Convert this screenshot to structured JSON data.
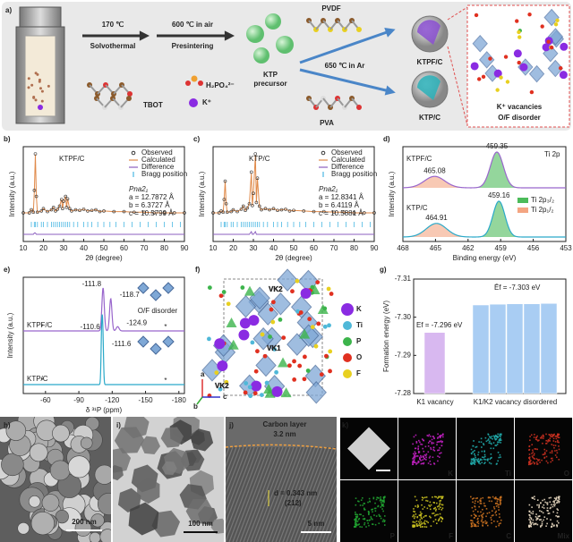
{
  "panel_a": {
    "label": "a)",
    "temp1": "170 ℃",
    "step1": "Solvothermal",
    "temp2": "600 ℃ in air",
    "step2": "Presintering",
    "precursor_lines": [
      "KTP",
      "precursor"
    ],
    "pvdf": "PVDF",
    "temp3": "650 ℃ in Ar",
    "pva": "PVA",
    "tbot": "TBOT",
    "phosphate": "H₂PO₄²⁻",
    "potassium": "K⁺",
    "product1": "KTPF/C",
    "product2": "KTP/C",
    "note1": "K⁺ vacancies",
    "note2": "O/F disorder"
  },
  "chart_data": [
    {
      "panel": "b)",
      "type": "rietveld",
      "sample": "KTPF/C",
      "xlabel": "2θ (degree)",
      "ylabel": "Intensity (a.u.)",
      "xlim": [
        10,
        90
      ],
      "xticks": [
        10,
        20,
        30,
        40,
        50,
        60,
        70,
        80,
        90
      ],
      "series": [
        {
          "name": "Observed",
          "color": "#333333"
        },
        {
          "name": "Calculated",
          "color": "#e08a4a"
        },
        {
          "name": "Difference",
          "color": "#8b5fbf"
        },
        {
          "name": "Bragg position",
          "color": "#6ec6e8"
        }
      ],
      "params": [
        "Pna2₁",
        "a = 12.7872 Å",
        "b = 6.3727 Å",
        "c = 10.5799 Å"
      ],
      "x": [
        10,
        13,
        14,
        15,
        15.5,
        16,
        16.5,
        17,
        19,
        20,
        22,
        24,
        25,
        26,
        27,
        28,
        29,
        29.5,
        30,
        31,
        31.5,
        32,
        33,
        34,
        36,
        38,
        40,
        42,
        44,
        46,
        48,
        50,
        55,
        60,
        65,
        70,
        75,
        80,
        85,
        90
      ],
      "observed": [
        3,
        3,
        8,
        4,
        40,
        100,
        30,
        4,
        6,
        10,
        5,
        8,
        12,
        6,
        9,
        14,
        25,
        10,
        22,
        30,
        12,
        26,
        10,
        6,
        8,
        7,
        9,
        6,
        7,
        8,
        5,
        6,
        5,
        5,
        4,
        4,
        3,
        3,
        3,
        3
      ],
      "calculated": [
        3,
        3,
        8,
        4,
        39,
        99,
        30,
        4,
        6,
        10,
        5,
        8,
        12,
        6,
        9,
        14,
        25,
        10,
        22,
        30,
        12,
        26,
        10,
        6,
        8,
        7,
        9,
        6,
        7,
        8,
        5,
        6,
        5,
        5,
        4,
        4,
        3,
        3,
        3,
        3
      ],
      "difference": [
        0,
        0,
        0,
        0,
        1,
        1,
        0,
        0,
        0,
        0,
        0,
        0,
        0,
        0,
        0,
        0,
        0,
        0,
        0,
        0,
        0,
        0,
        0,
        0,
        0,
        0,
        0,
        0,
        0,
        0,
        0,
        0,
        0,
        0,
        0,
        0,
        0,
        0,
        0,
        0
      ],
      "bragg": [
        14,
        15.5,
        16,
        17,
        19,
        20,
        22,
        24,
        25,
        26,
        27,
        28,
        29,
        30,
        31,
        32,
        33,
        35,
        37,
        40,
        42,
        44,
        47,
        50,
        53,
        56,
        60,
        64,
        68,
        72,
        76,
        80,
        84,
        88
      ]
    },
    {
      "panel": "c)",
      "type": "rietveld",
      "sample": "KTP/C",
      "xlabel": "2θ (degree)",
      "ylabel": "Intensity (a.u.)",
      "xlim": [
        10,
        90
      ],
      "xticks": [
        10,
        20,
        30,
        40,
        50,
        60,
        70,
        80,
        90
      ],
      "series": [
        {
          "name": "Observed",
          "color": "#333333"
        },
        {
          "name": "Calculated",
          "color": "#e08a4a"
        },
        {
          "name": "Difference",
          "color": "#8b5fbf"
        },
        {
          "name": "Bragg position",
          "color": "#6ec6e8"
        }
      ],
      "params": [
        "Pna2₁",
        "a = 12.8341 Å",
        "b = 6.4119 Å",
        "c = 10.5881 Å"
      ],
      "x": [
        10,
        13,
        14,
        15,
        15.5,
        16,
        16.5,
        17,
        19,
        20,
        22,
        24,
        25,
        26,
        27,
        28,
        29,
        29.5,
        30,
        31,
        31.5,
        32,
        33,
        34,
        36,
        38,
        40,
        42,
        44,
        46,
        48,
        50,
        55,
        60,
        65,
        70,
        75,
        80,
        85,
        90
      ],
      "observed": [
        3,
        3,
        6,
        4,
        25,
        55,
        18,
        4,
        5,
        8,
        5,
        9,
        14,
        7,
        11,
        18,
        70,
        15,
        35,
        100,
        20,
        60,
        14,
        8,
        10,
        8,
        10,
        7,
        8,
        9,
        6,
        7,
        6,
        5,
        5,
        4,
        4,
        3,
        3,
        3
      ],
      "calculated": [
        3,
        3,
        6,
        4,
        25,
        55,
        18,
        4,
        5,
        8,
        5,
        9,
        14,
        7,
        11,
        18,
        68,
        15,
        35,
        98,
        20,
        60,
        14,
        8,
        10,
        8,
        10,
        7,
        8,
        9,
        6,
        7,
        6,
        5,
        5,
        4,
        4,
        3,
        3,
        3
      ],
      "difference": [
        0,
        0,
        0,
        0,
        0,
        0,
        0,
        0,
        0,
        0,
        0,
        0,
        0,
        0,
        0,
        0,
        2,
        0,
        0,
        2,
        0,
        0,
        0,
        0,
        0,
        0,
        0,
        0,
        0,
        0,
        0,
        0,
        0,
        0,
        0,
        0,
        0,
        0,
        0,
        0
      ],
      "bragg": [
        14,
        15.5,
        16,
        17,
        19,
        20,
        22,
        24,
        25,
        26,
        27,
        28,
        29,
        30,
        31,
        32,
        33,
        35,
        37,
        40,
        42,
        44,
        47,
        50,
        53,
        56,
        60,
        64,
        68,
        72,
        76,
        80,
        84,
        88
      ]
    },
    {
      "panel": "d)",
      "type": "xps",
      "label": "Ti 2p",
      "xlabel": "Binding energy (eV)",
      "ylabel": "Intensity (a.u.)",
      "xlim": [
        468,
        453
      ],
      "xticks": [
        468,
        465,
        462,
        459,
        456,
        453
      ],
      "legend": [
        {
          "name": "Ti 2p₃/₂",
          "color": "#4cbb5a"
        },
        {
          "name": "Ti 2p₁/₂",
          "color": "#f4a582"
        }
      ],
      "samples": [
        {
          "name": "KTPF/C",
          "color": "#9966cc",
          "peaks": [
            459.35,
            465.08
          ],
          "heights": [
            1,
            0.32
          ],
          "widths": [
            1.4,
            2.2
          ]
        },
        {
          "name": "KTP/C",
          "color": "#2aa9c9",
          "peaks": [
            459.16,
            464.91
          ],
          "heights": [
            1,
            0.38
          ],
          "widths": [
            1.3,
            2.2
          ]
        }
      ]
    },
    {
      "panel": "e)",
      "type": "nmr",
      "xlabel": "δ ³¹P (ppm)",
      "ylabel": "Intensity (a.u.)",
      "xlim": [
        -40,
        -185
      ],
      "xticks": [
        -60,
        -90,
        -120,
        -150,
        -180
      ],
      "annotation": "O/F disorder",
      "sideband_label": "*",
      "samples": [
        {
          "name": "KTPF/C",
          "color": "#9966cc",
          "peaks": [
            -111.8,
            -118.7,
            -124.9
          ],
          "heights": [
            1,
            0.75,
            0.1
          ],
          "widths": [
            2.5,
            2.5,
            3
          ],
          "sidebands": [
            -57,
            -168
          ]
        },
        {
          "name": "KTP/C",
          "color": "#2aa9c9",
          "peaks": [
            -110.6,
            -111.6
          ],
          "heights": [
            1,
            0.85
          ],
          "widths": [
            1.4,
            1.4
          ],
          "sidebands": [
            -57,
            -168
          ]
        }
      ]
    },
    {
      "panel": "g)",
      "type": "bar",
      "ylabel": "Formation energy (eV)",
      "ylim": [
        -7.28,
        -7.31
      ],
      "yticks": [
        -7.31,
        {
          "value": -7.3,
          "label": "-7.30"
        },
        -7.29,
        -7.28
      ],
      "categories": [
        "K1 vacancy",
        "K1/K2 vacancy disordered"
      ],
      "colors": [
        "#d8b8f0",
        "#a9cdf3"
      ],
      "values": [
        [
          -7.296
        ],
        [
          -7.3032,
          -7.3034,
          -7.3035,
          -7.3035,
          -7.3036
        ]
      ],
      "annotations": [
        "Ef = -7.296 eV",
        "Ēf = -7.303 eV"
      ]
    }
  ],
  "panel_f": {
    "label": "f)",
    "axes": [
      "a",
      "b",
      "c"
    ],
    "vacancies": [
      "VK2",
      "VK1",
      "VK2"
    ],
    "legend": [
      {
        "name": "K",
        "color": "#8a2be2"
      },
      {
        "name": "Ti",
        "color": "#4fb8d8"
      },
      {
        "name": "P",
        "color": "#3cb44b"
      },
      {
        "name": "O",
        "color": "#e03020"
      },
      {
        "name": "F",
        "color": "#e8d020"
      }
    ]
  },
  "panel_h": {
    "label": "h)",
    "scale": "200 nm"
  },
  "panel_i": {
    "label": "i)",
    "scale": "100 nm"
  },
  "panel_j": {
    "label": "j)",
    "layer": "Carbon layer",
    "thickness": "3.2 nm",
    "spacing": "d = 0.343 nm",
    "plane": "(212)",
    "scale": "5 nm"
  },
  "panel_k": {
    "label": "k)",
    "maps": [
      {
        "name": "K",
        "color": "#c020c0"
      },
      {
        "name": "Ti",
        "color": "#20a8a8"
      },
      {
        "name": "O",
        "color": "#c83020"
      },
      {
        "name": "P",
        "color": "#20a030"
      },
      {
        "name": "F",
        "color": "#c8c020"
      },
      {
        "name": "C",
        "color": "#c87020"
      },
      {
        "name": "Mix",
        "color": "#e8d8c0"
      }
    ]
  }
}
